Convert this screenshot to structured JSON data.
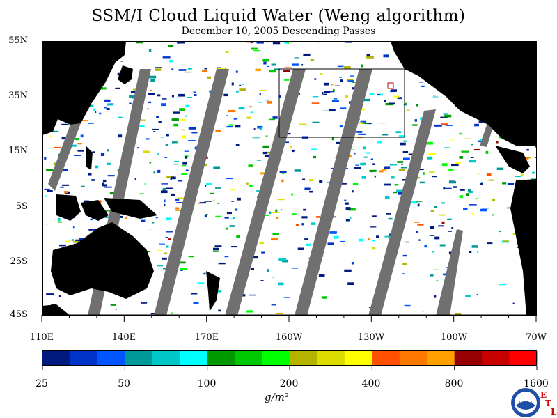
{
  "title": "SSM/I Cloud Liquid Water (Weng algorithm)",
  "subtitle": "December 10, 2005  Descending Passes",
  "lat_labels": [
    "55N",
    "35N",
    "15N",
    "5S",
    "25S",
    "45S"
  ],
  "lon_labels": [
    "110E",
    "140E",
    "170E",
    "160W",
    "130W",
    "100W",
    "70W"
  ],
  "colorbar": {
    "ticks": [
      "25",
      "50",
      "100",
      "200",
      "400",
      "800",
      "1600"
    ],
    "colors": [
      "#001a80",
      "#0033c8",
      "#0055ff",
      "#009999",
      "#00c8c8",
      "#00ffff",
      "#009900",
      "#00c800",
      "#00ff00",
      "#b4b400",
      "#dcdc00",
      "#ffff00",
      "#ff5000",
      "#ff7800",
      "#ffa000",
      "#960000",
      "#c80000",
      "#ff0000"
    ]
  },
  "units": "g/m²",
  "colors": {
    "land": "#000000",
    "no_data": "#707070",
    "ocean_clear": "#ffffff",
    "box": "#000000"
  },
  "logo": {
    "text": "NOAA",
    "letters": [
      "E",
      "T",
      "L"
    ]
  },
  "icons": [
    "noaa-logo-icon"
  ]
}
